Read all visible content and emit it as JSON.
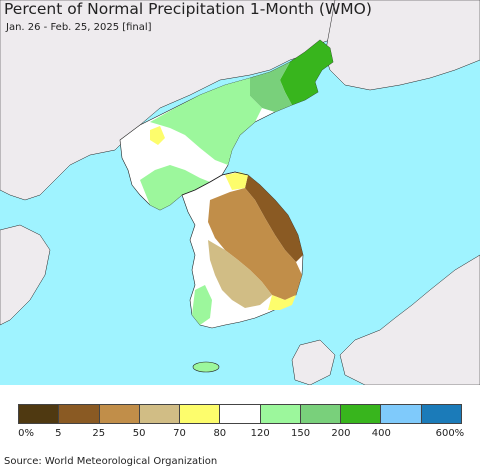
{
  "title": "Percent of Normal Precipitation 1-Month (WMO)",
  "subtitle": "Jan. 26 - Feb. 25, 2025 [final]",
  "source": "Source: World Meteorological Organization",
  "colors": {
    "ocean": "#9ff3ff",
    "land_other": "#eeebee",
    "border": "#222222"
  },
  "legend": {
    "colors": [
      "#4f3911",
      "#8a5a23",
      "#c18e49",
      "#d1bd85",
      "#fdfd6c",
      "#ffffff",
      "#9cf79c",
      "#79d07b",
      "#38b51d",
      "#7fcafb",
      "#1b7bb9"
    ],
    "tick_labels": [
      "0%",
      "5",
      "25",
      "50",
      "70",
      "80",
      "120",
      "150",
      "200",
      "400",
      "600%"
    ]
  }
}
